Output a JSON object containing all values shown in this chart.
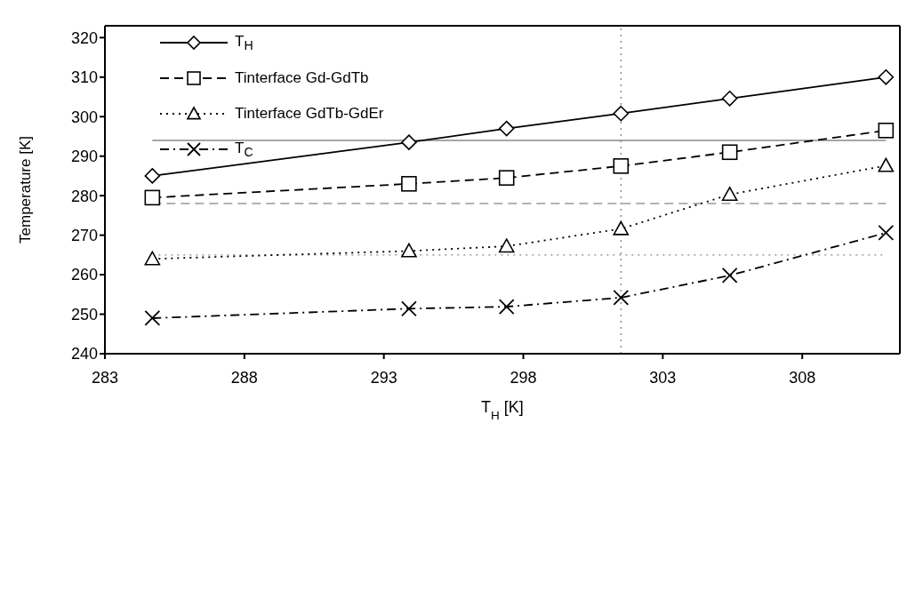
{
  "chart_data": {
    "type": "line",
    "xlabel": "T$_{H}$ [K]",
    "ylabel": "Temperature [K]",
    "x": [
      284.7,
      293.9,
      297.4,
      301.5,
      305.4,
      311.0
    ],
    "series": [
      {
        "name": "T$_{H}$",
        "color": "#000000",
        "marker": "diamond",
        "line_style": "solid",
        "values": [
          285,
          293.5,
          297,
          300.8,
          304.6,
          310
        ]
      },
      {
        "name": "Tinterface Gd-GdTb",
        "color": "#000000",
        "marker": "square",
        "line_style": "dashed",
        "values": [
          279.5,
          283,
          284.5,
          287.5,
          291,
          296.5
        ]
      },
      {
        "name": "Tinterface GdTb-GdEr",
        "color": "#000000",
        "marker": "triangle",
        "line_style": "dotted",
        "values": [
          264,
          266,
          267.2,
          271.6,
          280.3,
          287.6
        ]
      },
      {
        "name": "T$_{C}$",
        "color": "#000000",
        "marker": "cross",
        "line_style": "dashdot",
        "values": [
          249,
          251.4,
          251.9,
          254.2,
          259.8,
          270.6
        ]
      }
    ],
    "ref_lines": [
      {
        "axis": "y",
        "value": 294,
        "color": "#888888",
        "line_style": "solid"
      },
      {
        "axis": "y",
        "value": 278,
        "color": "#999999",
        "line_style": "dashed"
      },
      {
        "axis": "y",
        "value": 265,
        "color": "#888888",
        "line_style": "dotted"
      },
      {
        "axis": "x",
        "value": 301.5,
        "color": "#888888",
        "line_style": "dotted"
      }
    ],
    "xlim": [
      283,
      311.5
    ],
    "xticks": [
      283,
      288,
      293,
      298,
      303,
      308
    ],
    "ylim": [
      240,
      323
    ],
    "yticks": [
      240,
      250,
      260,
      270,
      280,
      290,
      300,
      310,
      320
    ],
    "grid": false,
    "legend": "top left"
  }
}
